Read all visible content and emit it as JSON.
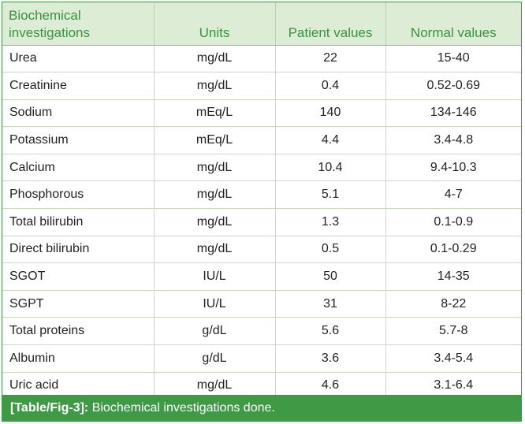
{
  "table": {
    "headers": {
      "investigation_line1": "Biochemical",
      "investigation_line2": "investigations",
      "units": "Units",
      "patient": "Patient values",
      "normal": "Normal values"
    },
    "rows": [
      {
        "name": "Urea",
        "units": "mg/dL",
        "patient": "22",
        "normal": "15-40"
      },
      {
        "name": "Creatinine",
        "units": "mg/dL",
        "patient": "0.4",
        "normal": "0.52-0.69"
      },
      {
        "name": "Sodium",
        "units": "mEq/L",
        "patient": "140",
        "normal": "134-146"
      },
      {
        "name": "Potassium",
        "units": "mEq/L",
        "patient": "4.4",
        "normal": "3.4-4.8"
      },
      {
        "name": "Calcium",
        "units": "mg/dL",
        "patient": "10.4",
        "normal": "9.4-10.3"
      },
      {
        "name": "Phosphorous",
        "units": "mg/dL",
        "patient": "5.1",
        "normal": "4-7"
      },
      {
        "name": "Total bilirubin",
        "units": "mg/dL",
        "patient": "1.3",
        "normal": "0.1-0.9"
      },
      {
        "name": "Direct bilirubin",
        "units": "mg/dL",
        "patient": "0.5",
        "normal": "0.1-0.29"
      },
      {
        "name": "SGOT",
        "units": "IU/L",
        "patient": "50",
        "normal": "14-35"
      },
      {
        "name": "SGPT",
        "units": "IU/L",
        "patient": "31",
        "normal": "8-22"
      },
      {
        "name": "Total proteins",
        "units": "g/dL",
        "patient": "5.6",
        "normal": "5.7-8"
      },
      {
        "name": "Albumin",
        "units": "g/dL",
        "patient": "3.6",
        "normal": "3.4-5.4"
      },
      {
        "name": "Uric acid",
        "units": "mg/dL",
        "patient": "4.6",
        "normal": "3.1-6.4"
      }
    ]
  },
  "caption": {
    "label": "[Table/Fig-3]:",
    "text": "Biochemical investigations done."
  },
  "colors": {
    "accent_green": "#3f9a46",
    "header_bg": "#ddecd4",
    "header_text": "#3a9142"
  }
}
